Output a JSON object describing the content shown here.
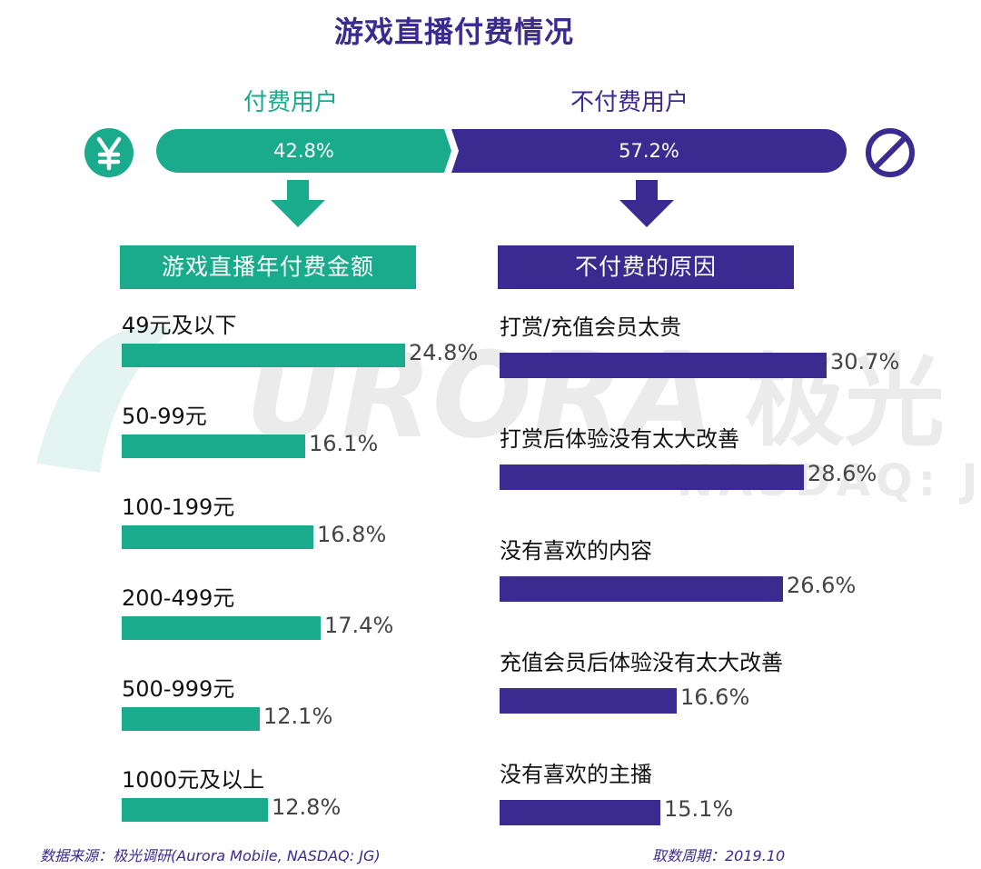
{
  "colors": {
    "teal": "#1aab8c",
    "purple": "#3b2a8f",
    "watermark": "#6e6e6e"
  },
  "title": "游戏直播付费情况",
  "split": {
    "paid": {
      "label": "付费用户",
      "value": 42.8,
      "value_text": "42.8%",
      "icon": "yen-icon"
    },
    "unpaid": {
      "label": "不付费用户",
      "value": 57.2,
      "value_text": "57.2%",
      "icon": "no-entry-icon"
    }
  },
  "watermark": {
    "brand": "URORA",
    "brand_cn": "极光",
    "sub": "NASDAQ: JG"
  },
  "chart_data": [
    {
      "type": "bar",
      "title": "游戏直播年付费金额",
      "categories": [
        "49元及以下",
        "50-99元",
        "100-199元",
        "200-499元",
        "500-999元",
        "1000元及以上"
      ],
      "values": [
        24.8,
        16.1,
        16.8,
        17.4,
        12.1,
        12.8
      ],
      "value_labels": [
        "24.8%",
        "16.1%",
        "16.8%",
        "17.4%",
        "12.1%",
        "12.8%"
      ]
    },
    {
      "type": "bar",
      "title": "不付费的原因",
      "categories": [
        "打赏/充值会员太贵",
        "打赏后体验没有太大改善",
        "没有喜欢的内容",
        "充值会员后体验没有太大改善",
        "没有喜欢的主播"
      ],
      "values": [
        30.7,
        28.6,
        26.6,
        16.6,
        15.1
      ],
      "value_labels": [
        "30.7%",
        "28.6%",
        "26.6%",
        "16.6%",
        "15.1%"
      ]
    }
  ],
  "footer": {
    "source": "数据来源：极光调研(Aurora Mobile, NASDAQ: JG)",
    "period": "取数周期：2019.10"
  }
}
